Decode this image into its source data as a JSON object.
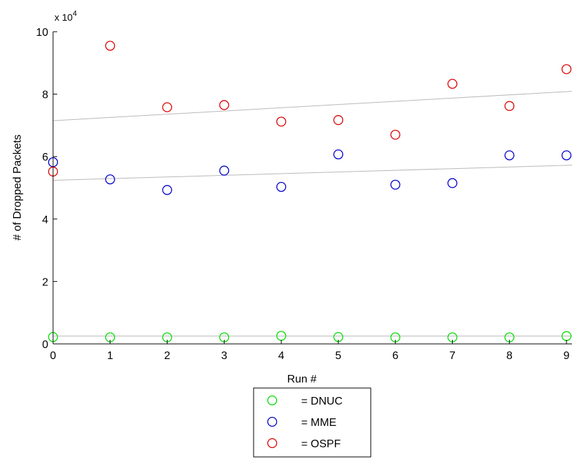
{
  "chart_data": {
    "type": "scatter",
    "xlabel": "Run #",
    "ylabel": "# of Dropped Packets",
    "y_exponent_label": "x 10",
    "y_exponent_power": "4",
    "xlim": [
      0,
      9
    ],
    "ylim": [
      0,
      10
    ],
    "x_ticks": [
      "0",
      "1",
      "2",
      "3",
      "4",
      "5",
      "6",
      "7",
      "8",
      "9"
    ],
    "y_ticks": [
      "0",
      "2",
      "4",
      "6",
      "8",
      "10"
    ],
    "grid": false,
    "legend_position": "bottom-center",
    "x": [
      0,
      1,
      2,
      3,
      4,
      5,
      6,
      7,
      8,
      9
    ],
    "series": [
      {
        "name": "= DNUC",
        "color": "#00dd00",
        "values": [
          0.22,
          0.21,
          0.21,
          0.21,
          0.26,
          0.22,
          0.21,
          0.21,
          0.21,
          0.25
        ],
        "trend": [
          0.25,
          0.25
        ]
      },
      {
        "name": "= MME",
        "color": "#0000cc",
        "values": [
          5.82,
          5.27,
          4.93,
          5.55,
          5.03,
          6.07,
          5.1,
          5.15,
          6.04,
          6.04
        ],
        "trend": [
          5.24,
          5.72
        ]
      },
      {
        "name": "= OSPF",
        "color": "#dd0000",
        "values": [
          5.52,
          9.55,
          7.58,
          7.65,
          7.12,
          7.17,
          6.7,
          8.33,
          7.62,
          8.8
        ],
        "trend": [
          7.15,
          8.08
        ]
      }
    ]
  }
}
